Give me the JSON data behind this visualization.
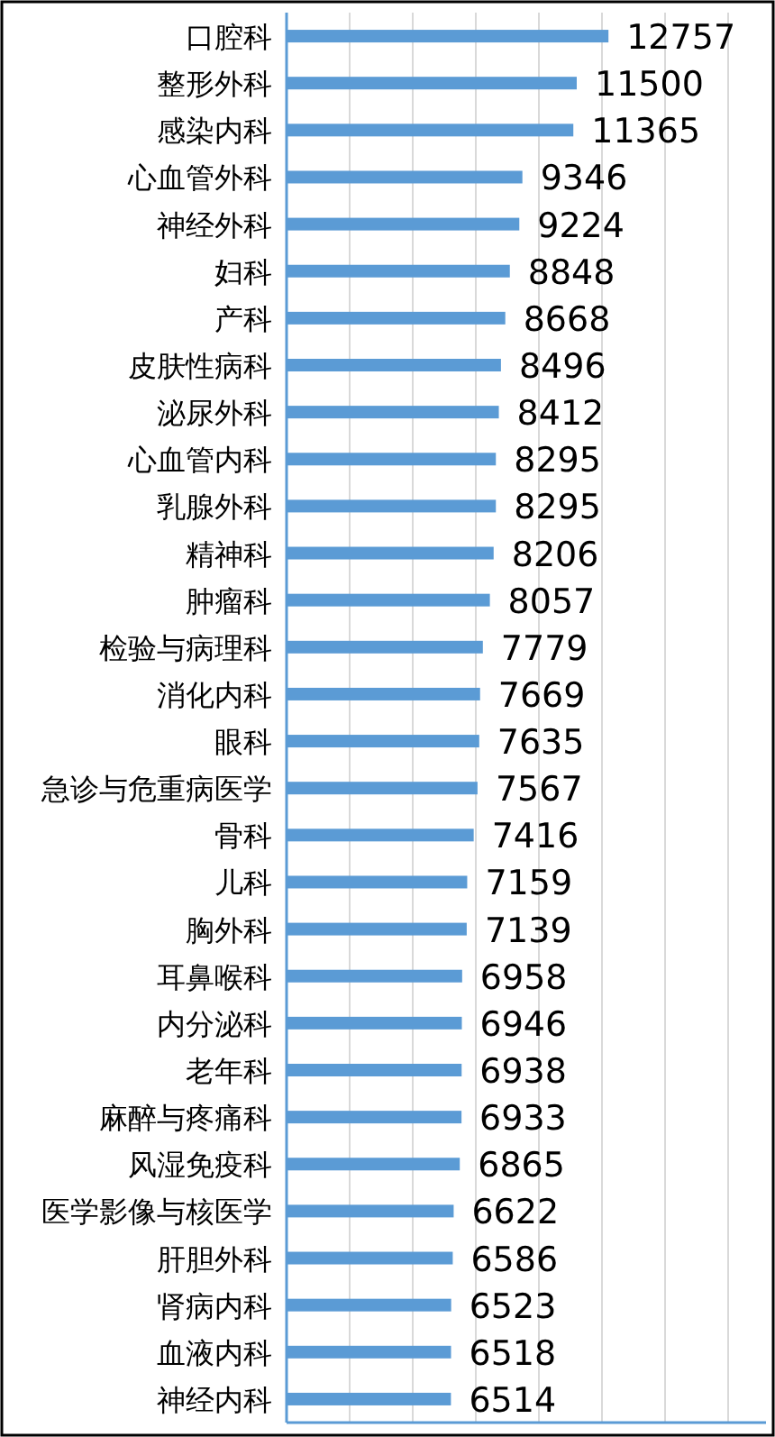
{
  "chart_data": {
    "type": "bar",
    "orientation": "horizontal",
    "categories": [
      "口腔科",
      "整形外科",
      "感染内科",
      "心血管外科",
      "神经外科",
      "妇科",
      "产科",
      "皮肤性病科",
      "泌尿外科",
      "心血管内科",
      "乳腺外科",
      "精神科",
      "肿瘤科",
      "检验与病理科",
      "消化内科",
      "眼科",
      "急诊与危重病医学",
      "骨科",
      "儿科",
      "胸外科",
      "耳鼻喉科",
      "内分泌科",
      "老年科",
      "麻醉与疼痛科",
      "风湿免疫科",
      "医学影像与核医学",
      "肝胆外科",
      "肾病内科",
      "血液内科",
      "神经内科"
    ],
    "values": [
      12757,
      11500,
      11365,
      9346,
      9224,
      8848,
      8668,
      8496,
      8412,
      8295,
      8295,
      8206,
      8057,
      7779,
      7669,
      7635,
      7567,
      7416,
      7159,
      7139,
      6958,
      6946,
      6938,
      6933,
      6865,
      6622,
      6586,
      6523,
      6518,
      6514
    ],
    "color": "#5b9bd5",
    "data_labels": true,
    "grid": "x",
    "tick_labels": "y",
    "xlim": [
      0,
      19000
    ],
    "xticks": [
      {
        "value": 0,
        "label": null
      },
      {
        "value": 2500,
        "label": null
      },
      {
        "value": 5000,
        "label": null
      },
      {
        "value": 7500,
        "label": null
      },
      {
        "value": 10000,
        "label": null
      },
      {
        "value": 12500,
        "label": null
      },
      {
        "value": 15000,
        "label": null
      },
      {
        "value": 17500,
        "label": null
      }
    ]
  }
}
